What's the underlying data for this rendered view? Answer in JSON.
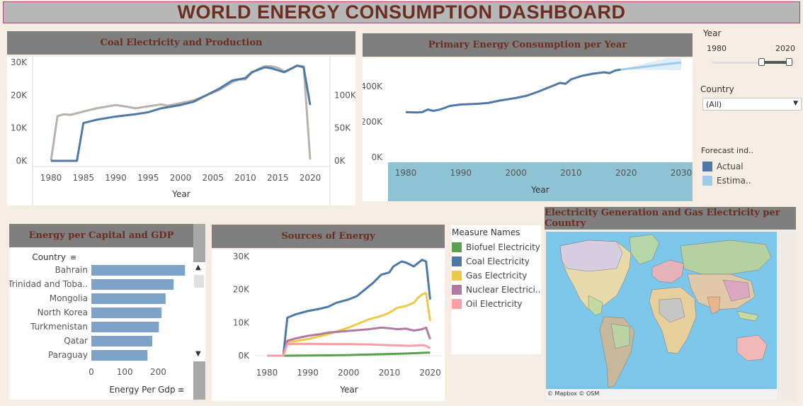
{
  "title": "WORLD ENERGY CONSUMPTION DASHBOARD",
  "colors": {
    "blue": "#4e79a7",
    "gray": "#bab0ac",
    "green": "#59a14f",
    "yellow": "#edc948",
    "purple": "#b07aa1",
    "pink": "#ff9da7",
    "light_blue": "#a0cbe8",
    "teal_band": "#8ec3d3"
  },
  "filters": {
    "year": {
      "label": "Year",
      "min": "1980",
      "max": "2020"
    },
    "country": {
      "label": "Country",
      "value": "(All)"
    },
    "forecast": {
      "label": "Forecast ind..",
      "items": [
        "Actual",
        "Estima.."
      ]
    }
  },
  "coal_panel": {
    "title": "Coal Electricity and Production"
  },
  "primary_panel": {
    "title": "Primary Energy Consumption per Year"
  },
  "capita_panel": {
    "title": "Energy per Capital and GDP",
    "country_header": "Country",
    "axis_label": "Energy Per Gdp"
  },
  "sources_panel": {
    "title": "Sources of Energy"
  },
  "measure_legend": {
    "title": "Measure Names",
    "items": [
      "Biofuel Electricity",
      "Coal Electricity",
      "Gas Electricity",
      "Nuclear Electrici..",
      "Oil Electricity"
    ]
  },
  "map_panel": {
    "title": "Electricity Generation and Gas Electricity per Country",
    "credit": "© Mapbox © OSM"
  },
  "chart_data": [
    {
      "type": "line",
      "title": "Coal Electricity and Production",
      "xlabel": "Year",
      "x_ticks": [
        "1980",
        "1985",
        "1990",
        "1995",
        "2000",
        "2005",
        "2010",
        "2015",
        "2020"
      ],
      "y_left_ticks": [
        "0K",
        "10K",
        "20K",
        "30K"
      ],
      "y_right_ticks": [
        "0K",
        "50K",
        "100K"
      ],
      "ylim_left": [
        0,
        30000
      ],
      "ylim_right": [
        0,
        150000
      ],
      "series": [
        {
          "axis": "left",
          "color": "#4e79a7",
          "x": [
            1980,
            1984,
            1985,
            1987,
            1990,
            1993,
            1995,
            1997,
            2000,
            2002,
            2004,
            2006,
            2008,
            2010,
            2011,
            2013,
            2014,
            2016,
            2017,
            2018,
            2019,
            2020
          ],
          "y": [
            0,
            0,
            11500,
            12500,
            13500,
            14200,
            14800,
            16000,
            17000,
            18000,
            20000,
            22000,
            24500,
            25200,
            27000,
            28500,
            28200,
            27000,
            28000,
            29000,
            28500,
            17000
          ]
        },
        {
          "axis": "right",
          "color": "#bab0ac",
          "x": [
            1980,
            1981,
            1982,
            1983,
            1985,
            1987,
            1990,
            1992,
            1993,
            1995,
            1997,
            1998,
            2000,
            2002,
            2004,
            2006,
            2008,
            2009,
            2010,
            2011,
            2012,
            2013,
            2014,
            2015,
            2016,
            2017,
            2018,
            2019,
            2020
          ],
          "y": [
            0,
            68000,
            71000,
            70000,
            75000,
            80000,
            85000,
            82000,
            80000,
            83000,
            86000,
            84000,
            88000,
            92000,
            100000,
            108000,
            120000,
            124000,
            124000,
            134000,
            140000,
            144000,
            144000,
            142000,
            136000,
            140000,
            145000,
            144000,
            2000
          ]
        }
      ]
    },
    {
      "type": "line",
      "title": "Primary Energy Consumption per Year",
      "xlabel": "Year",
      "x_ticks": [
        "1980",
        "1990",
        "2000",
        "2010",
        "2020",
        "2030"
      ],
      "y_ticks": [
        "0K",
        "200K",
        "400K"
      ],
      "ylim": [
        0,
        560000
      ],
      "series": [
        {
          "name": "Actual",
          "color": "#4e79a7",
          "x": [
            1980,
            1982,
            1983,
            1984,
            1985,
            1986,
            1987,
            1988,
            1990,
            1993,
            1995,
            1997,
            2000,
            2002,
            2004,
            2006,
            2008,
            2009,
            2010,
            2012,
            2014,
            2016,
            2017,
            2018,
            2019
          ],
          "y": [
            255000,
            253000,
            255000,
            270000,
            262000,
            268000,
            278000,
            290000,
            298000,
            302000,
            307000,
            320000,
            335000,
            348000,
            370000,
            395000,
            420000,
            415000,
            440000,
            460000,
            472000,
            480000,
            475000,
            490000,
            495000
          ]
        },
        {
          "name": "Estima..",
          "color": "#a0cbe8",
          "x": [
            2019,
            2023,
            2027,
            2030
          ],
          "y": [
            495000,
            510000,
            525000,
            535000
          ]
        }
      ]
    },
    {
      "type": "bar",
      "title": "Energy per Capital and GDP",
      "categories": [
        "Bahrain",
        "Trinidad and Toba..",
        "Mongolia",
        "North Korea",
        "Turkmenistan",
        "Qatar",
        "Paraguay"
      ],
      "values": [
        280,
        246,
        222,
        210,
        202,
        182,
        168
      ],
      "x_ticks": [
        "0",
        "100",
        "200"
      ],
      "xlim": [
        0,
        290
      ],
      "xlabel": "Energy Per Gdp"
    },
    {
      "type": "line",
      "title": "Sources of Energy",
      "xlabel": "Year",
      "x_ticks": [
        "1980",
        "1990",
        "2000",
        "2010",
        "2020"
      ],
      "y_ticks": [
        "0K",
        "10K",
        "20K",
        "30K"
      ],
      "ylim": [
        0,
        30000
      ],
      "series": [
        {
          "name": "Biofuel Electricity",
          "color": "#59a14f",
          "x": [
            1980,
            1985,
            1990,
            1995,
            2000,
            2005,
            2010,
            2015,
            2019,
            2020
          ],
          "y": [
            0,
            0,
            50,
            100,
            200,
            350,
            500,
            700,
            900,
            950
          ]
        },
        {
          "name": "Coal Electricity",
          "color": "#4e79a7",
          "x": [
            1980,
            1984,
            1985,
            1987,
            1990,
            1993,
            1995,
            1997,
            2000,
            2002,
            2004,
            2006,
            2008,
            2010,
            2011,
            2013,
            2014,
            2016,
            2017,
            2018,
            2019,
            2020
          ],
          "y": [
            0,
            0,
            11500,
            12500,
            13500,
            14200,
            14800,
            16000,
            17000,
            18000,
            20000,
            22000,
            24500,
            25200,
            27000,
            28500,
            28200,
            27000,
            28000,
            29000,
            28500,
            17000
          ]
        },
        {
          "name": "Gas Electricity",
          "color": "#edc948",
          "x": [
            1980,
            1984,
            1985,
            1990,
            1995,
            2000,
            2005,
            2008,
            2010,
            2012,
            2014,
            2016,
            2017,
            2018,
            2019,
            2020
          ],
          "y": [
            0,
            0,
            4000,
            5000,
            6500,
            8500,
            11000,
            12000,
            13000,
            14500,
            15000,
            16000,
            17500,
            18500,
            19000,
            10500
          ]
        },
        {
          "name": "Nuclear Electrici..",
          "color": "#b07aa1",
          "x": [
            1980,
            1984,
            1985,
            1987,
            1990,
            1993,
            1995,
            2000,
            2005,
            2008,
            2010,
            2012,
            2014,
            2016,
            2018,
            2019,
            2020
          ],
          "y": [
            0,
            0,
            4500,
            5200,
            6000,
            6500,
            7000,
            7500,
            8000,
            8500,
            8300,
            8000,
            8200,
            7600,
            8000,
            8500,
            5000
          ]
        },
        {
          "name": "Oil Electricity",
          "color": "#ff9da7",
          "x": [
            1980,
            1984,
            1985,
            1990,
            1995,
            2000,
            2005,
            2010,
            2015,
            2018,
            2019,
            2020
          ],
          "y": [
            0,
            0,
            3500,
            3600,
            3500,
            3500,
            3400,
            3200,
            3000,
            3200,
            3000,
            2200
          ]
        }
      ]
    }
  ]
}
